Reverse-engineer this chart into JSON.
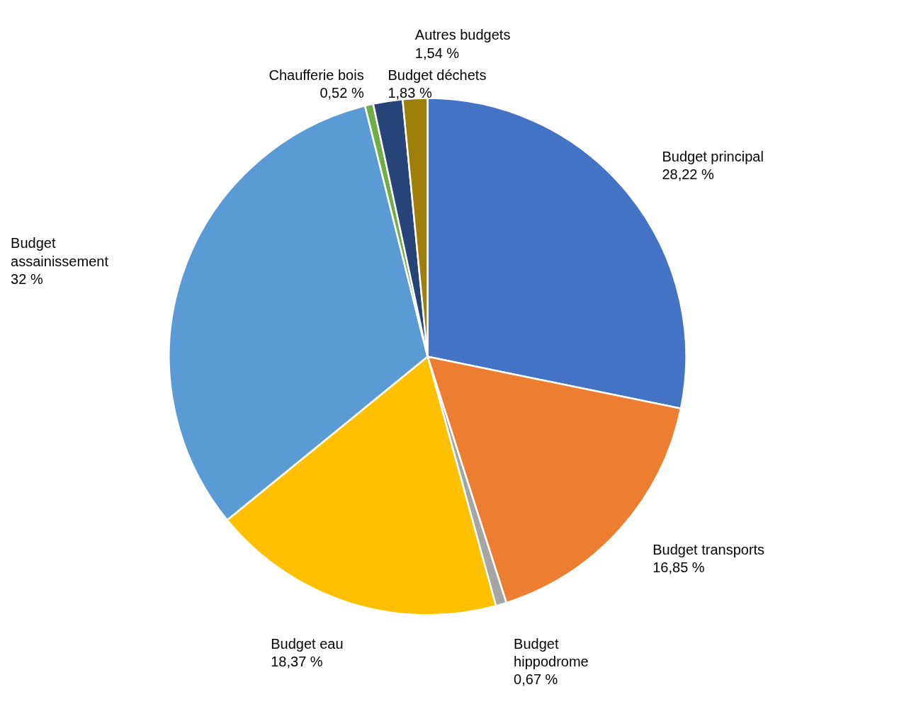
{
  "chart_data": {
    "type": "pie",
    "categories": [
      "Budget principal",
      "Budget transports",
      "Budget\nhippodrome",
      "Budget eau",
      "Budget\nassainissement",
      "Chaufferie bois",
      "Budget déchets",
      "Autres budgets"
    ],
    "values": [
      28.22,
      16.85,
      0.67,
      18.37,
      32,
      0.52,
      1.83,
      1.54
    ],
    "colors": [
      "#4472c4",
      "#ed7d31",
      "#a5a5a5",
      "#ffc000",
      "#5b9bd5",
      "#70ad47",
      "#264478",
      "#9e7f0a"
    ],
    "value_labels": [
      "28,22 %",
      "16,85 %",
      "0,67 %",
      "18,37 %",
      "32 %",
      "0,52 %",
      "1,83 %",
      "1,54 %"
    ]
  }
}
